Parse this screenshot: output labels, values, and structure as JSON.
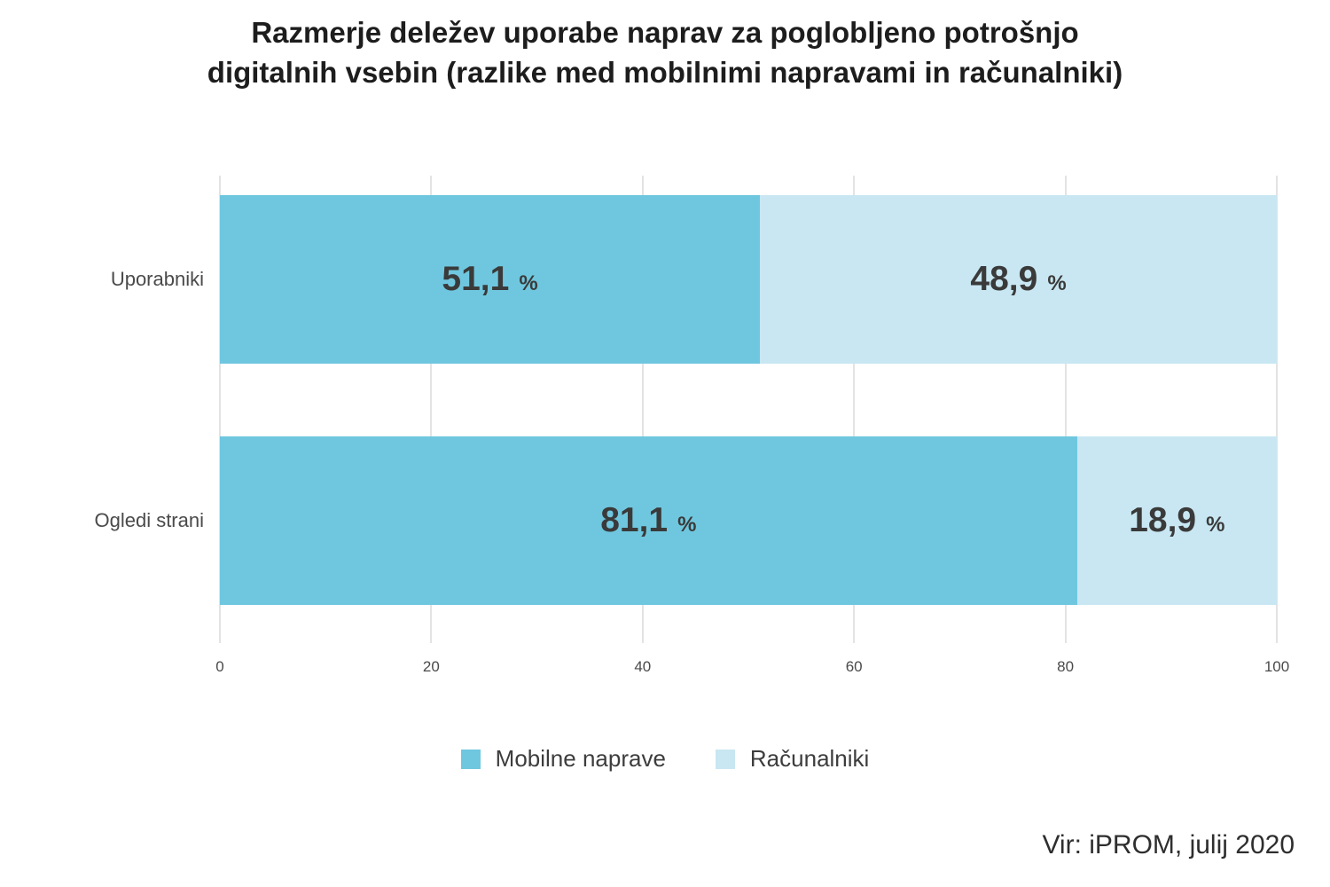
{
  "title": "Razmerje deležev uporabe naprav za poglobljeno potrošnjo digitalnih vsebin (razlike med mobilnimi napravami in računalniki)",
  "title_lines": [
    "Razmerje deležev uporabe naprav za poglobljeno potrošnjo",
    "digitalnih vsebin (razlike med mobilnimi napravami in računalniki)"
  ],
  "source": "Vir: iPROM, julij 2020",
  "colors": {
    "mobile": "#6FC7DF",
    "computer": "#C8E7F2",
    "gridline": "#e3e3e3",
    "value_label": "#3a3a3a",
    "title": "#1d1d1d",
    "axis_text": "#4a4a4a"
  },
  "chart_data": {
    "type": "bar",
    "orientation": "horizontal",
    "stacked": true,
    "categories": [
      "Uporabniki",
      "Ogledi strani"
    ],
    "series": [
      {
        "name": "Mobilne naprave",
        "color": "#6FC7DF",
        "values": [
          51.1,
          81.1
        ],
        "display_values": [
          "51,1",
          "81,1"
        ]
      },
      {
        "name": "Računalniki",
        "color": "#C8E7F2",
        "values": [
          48.9,
          18.9
        ],
        "display_values": [
          "48,9",
          "18,9"
        ]
      }
    ],
    "value_suffix": "%",
    "xlabel": "",
    "ylabel": "",
    "xlim": [
      0,
      100
    ],
    "x_ticks": [
      "0",
      "20",
      "40",
      "60",
      "80",
      "100"
    ],
    "grid": true,
    "legend_position": "bottom"
  }
}
